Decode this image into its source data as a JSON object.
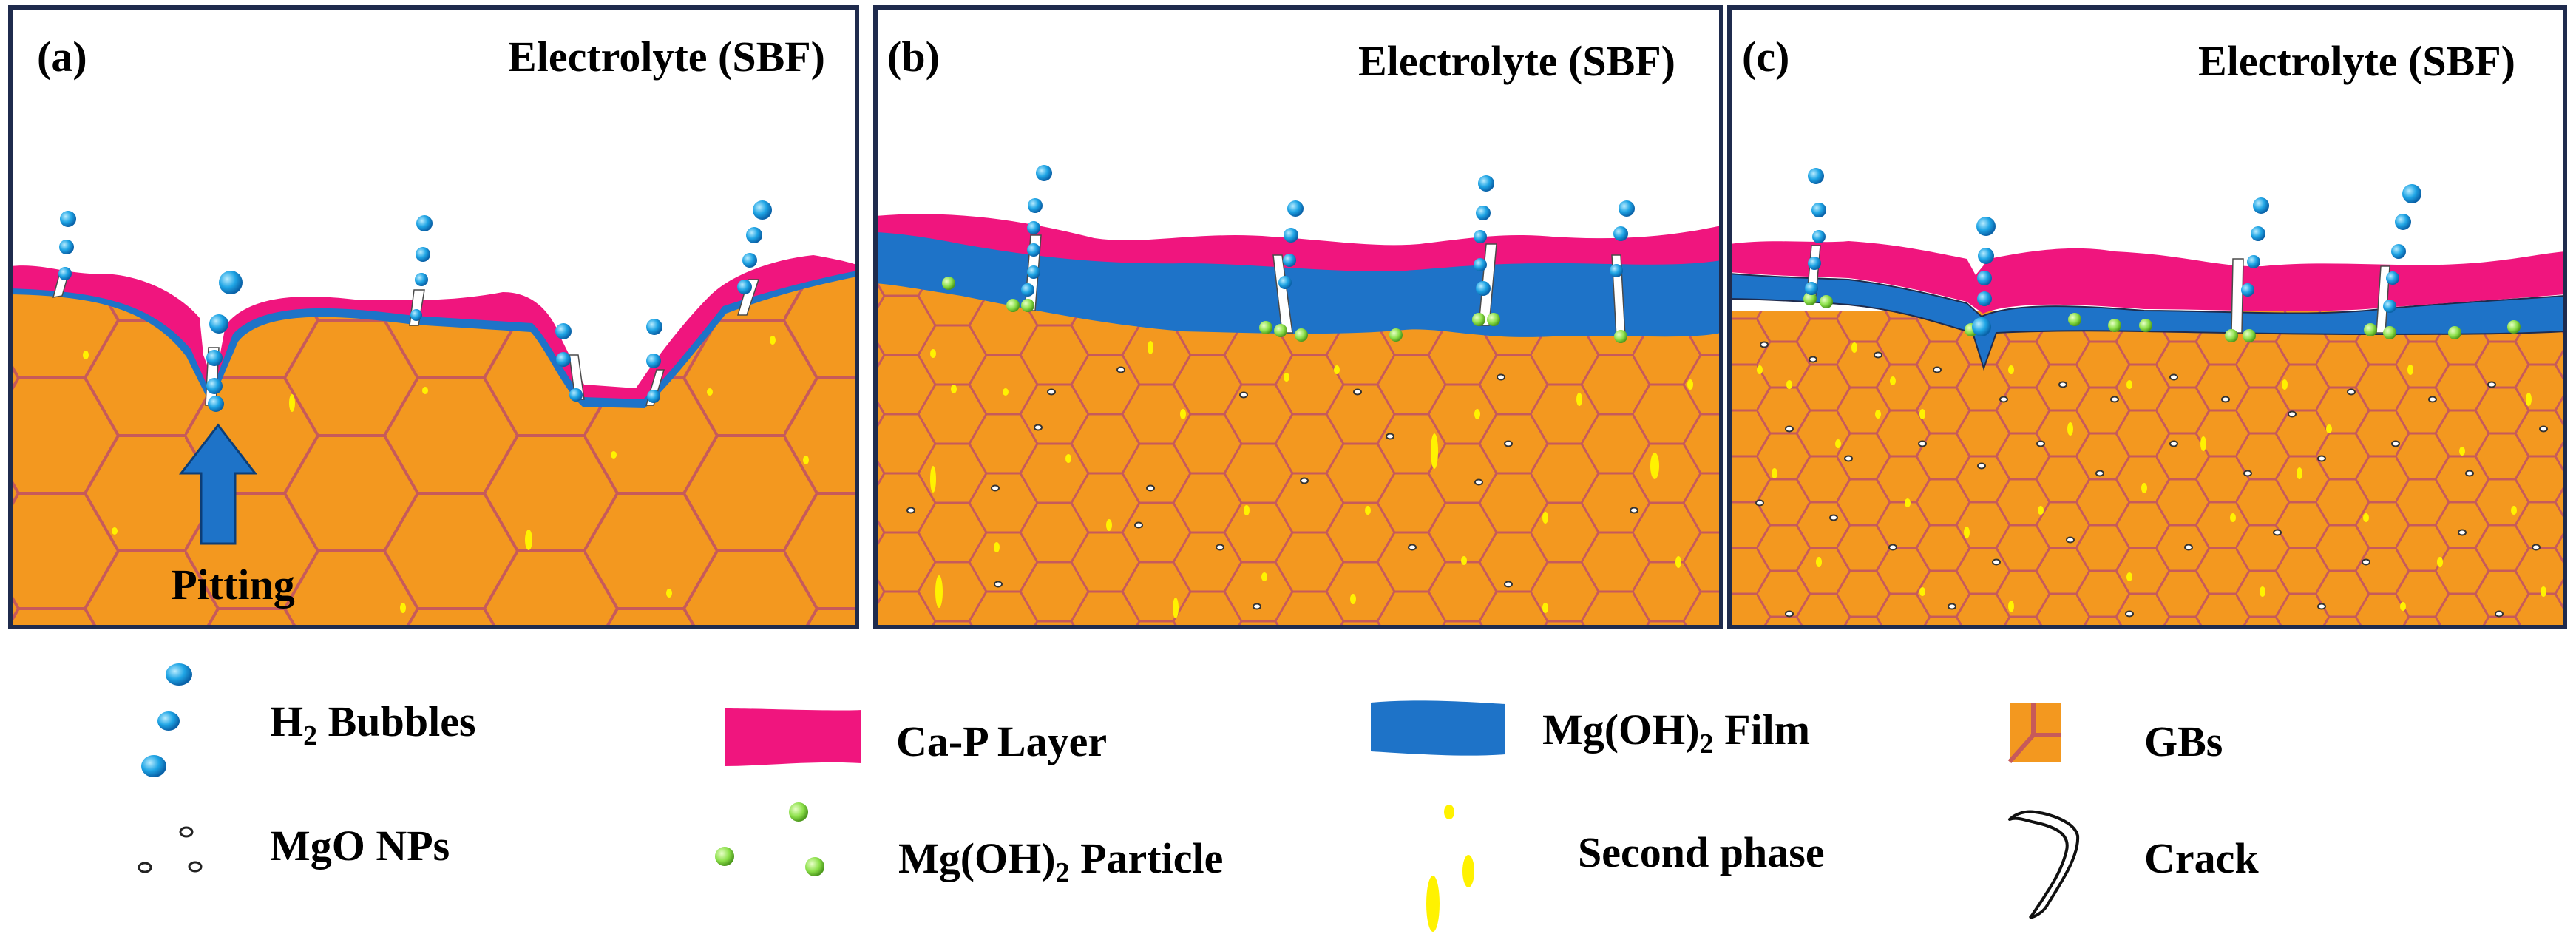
{
  "panels": [
    {
      "letter": "(a)",
      "electrolyte": "Electrolyte (SBF)",
      "annotation": "Pitting"
    },
    {
      "letter": "(b)",
      "electrolyte": "Electrolyte (SBF)"
    },
    {
      "letter": "(c)",
      "electrolyte": "Electrolyte (SBF)"
    }
  ],
  "legend": {
    "h2_bubbles": {
      "main": "H",
      "sub": "2",
      "rest": " Bubbles"
    },
    "cap_layer": "Ca-P Layer",
    "mgoh2_film": {
      "main": "Mg(OH)",
      "sub": "2",
      "rest": " Film"
    },
    "gbs": "GBs",
    "mgo_nps": "MgO NPs",
    "mgoh2_particle": {
      "main": "Mg(OH)",
      "sub": "2",
      "rest": " Particle"
    },
    "second_phase": "Second phase",
    "crack": "Crack"
  },
  "colors": {
    "metal": "#F3981F",
    "grain_boundary": "#C75A5A",
    "cap_layer": "#F0157E",
    "mgoh2_film": "#1E73C8",
    "bubble": "#1FA5E5",
    "particle": "#8CE04A",
    "second_phase": "#FFF200",
    "frame": "#1F2B4D"
  }
}
